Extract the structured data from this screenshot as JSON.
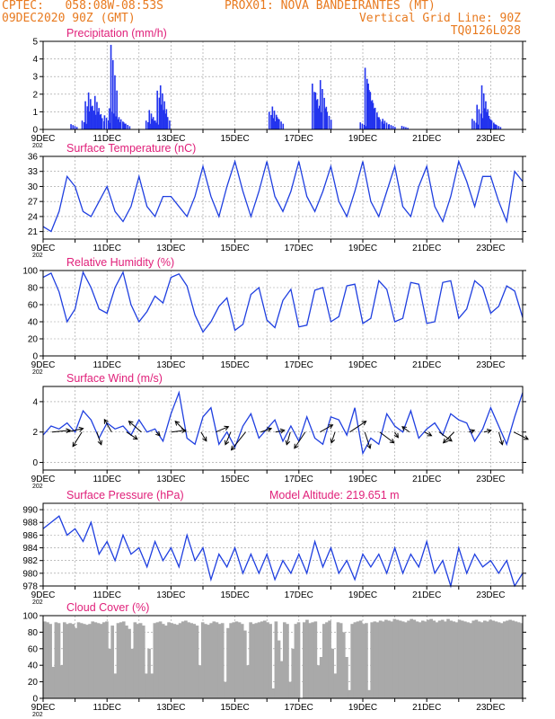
{
  "header": {
    "line1_left": "CPTEC:   058:08W-08:53S",
    "line1_right": "PROX01: NOVA BANDEIRANTES (MT)",
    "line2_left": "09DEC2020 90Z (GMT)",
    "line2_right": "Vertical Grid Line: 90Z",
    "line3_right": "TQ0126L028",
    "color": "#e87a1f"
  },
  "colors": {
    "series": "#1f3fe0",
    "bars": "#2233ee",
    "cloud": "#a9a9a9",
    "title": "#e0207a",
    "axis": "#000000"
  },
  "x_ticks": [
    "9DEC",
    "11DEC",
    "13DEC",
    "15DEC",
    "17DEC",
    "19DEC",
    "21DEC",
    "23DEC"
  ],
  "year_stub": "202",
  "chart_data": [
    {
      "type": "bar",
      "title": "Precipitation (mm/h)",
      "ylim": [
        0,
        5
      ],
      "yticks": [
        0,
        1,
        2,
        3,
        4,
        5
      ],
      "x_range_days": [
        9,
        24
      ],
      "events": [
        {
          "day": 9.85,
          "value": 0.3
        },
        {
          "day": 10.2,
          "value": 0.5
        },
        {
          "day": 10.3,
          "value": 1.6
        },
        {
          "day": 10.4,
          "value": 2.1
        },
        {
          "day": 10.5,
          "value": 1.3
        },
        {
          "day": 10.6,
          "value": 1.9
        },
        {
          "day": 10.7,
          "value": 1.0
        },
        {
          "day": 10.9,
          "value": 0.8
        },
        {
          "day": 11.05,
          "value": 1.2
        },
        {
          "day": 11.1,
          "value": 4.8
        },
        {
          "day": 11.2,
          "value": 0.9
        },
        {
          "day": 11.35,
          "value": 0.7
        },
        {
          "day": 11.5,
          "value": 0.4
        },
        {
          "day": 12.2,
          "value": 0.5
        },
        {
          "day": 12.3,
          "value": 1.1
        },
        {
          "day": 12.4,
          "value": 0.6
        },
        {
          "day": 12.55,
          "value": 2.2
        },
        {
          "day": 12.65,
          "value": 2.5
        },
        {
          "day": 12.75,
          "value": 1.1
        },
        {
          "day": 16.05,
          "value": 1.0
        },
        {
          "day": 16.15,
          "value": 1.3
        },
        {
          "day": 16.3,
          "value": 0.7
        },
        {
          "day": 17.4,
          "value": 2.6
        },
        {
          "day": 17.5,
          "value": 2.1
        },
        {
          "day": 17.65,
          "value": 2.8
        },
        {
          "day": 17.8,
          "value": 1.2
        },
        {
          "day": 18.9,
          "value": 0.4
        },
        {
          "day": 19.05,
          "value": 3.5
        },
        {
          "day": 19.15,
          "value": 2.6
        },
        {
          "day": 19.3,
          "value": 1.5
        },
        {
          "day": 19.45,
          "value": 0.7
        },
        {
          "day": 19.6,
          "value": 0.6
        },
        {
          "day": 19.8,
          "value": 0.3
        },
        {
          "day": 20.2,
          "value": 0.2
        },
        {
          "day": 22.4,
          "value": 0.6
        },
        {
          "day": 22.55,
          "value": 1.4
        },
        {
          "day": 22.7,
          "value": 2.5
        },
        {
          "day": 22.8,
          "value": 1.2
        },
        {
          "day": 22.95,
          "value": 0.6
        },
        {
          "day": 23.1,
          "value": 0.3
        }
      ]
    },
    {
      "type": "line",
      "title": "Surface Temperature (nC)",
      "ylim": [
        19.5,
        36
      ],
      "yticks": [
        21,
        24,
        27,
        30,
        33,
        36
      ],
      "x": [
        9,
        9.25,
        9.5,
        9.75,
        10,
        10.25,
        10.5,
        10.75,
        11,
        11.25,
        11.5,
        11.75,
        12,
        12.25,
        12.5,
        12.75,
        13,
        13.25,
        13.5,
        13.75,
        14,
        14.25,
        14.5,
        14.75,
        15,
        15.25,
        15.5,
        15.75,
        16,
        16.25,
        16.5,
        16.75,
        17,
        17.25,
        17.5,
        17.75,
        18,
        18.25,
        18.5,
        18.75,
        19,
        19.25,
        19.5,
        19.75,
        20,
        20.25,
        20.5,
        20.75,
        21,
        21.25,
        21.5,
        21.75,
        22,
        22.25,
        22.5,
        22.75,
        23,
        23.25,
        23.5,
        23.75,
        24
      ],
      "values": [
        22,
        21,
        25,
        32,
        30,
        25,
        24,
        27,
        30,
        25,
        23,
        26,
        32,
        26,
        24,
        28,
        28,
        26,
        24,
        28,
        34,
        28,
        24,
        30,
        35,
        29,
        24,
        29,
        35,
        28,
        25,
        29,
        35,
        28,
        25,
        29,
        34,
        27,
        24,
        29,
        35,
        27,
        24,
        29,
        34,
        26,
        24,
        30,
        34,
        26,
        23,
        28,
        35,
        31,
        26,
        32,
        32,
        27,
        23,
        33,
        31
      ]
    },
    {
      "type": "line",
      "title": "Relative Humidity (%)",
      "ylim": [
        0,
        100
      ],
      "yticks": [
        0,
        20,
        40,
        60,
        80,
        100
      ],
      "x": [
        9,
        9.25,
        9.5,
        9.75,
        10,
        10.25,
        10.5,
        10.75,
        11,
        11.25,
        11.5,
        11.75,
        12,
        12.25,
        12.5,
        12.75,
        13,
        13.25,
        13.5,
        13.75,
        14,
        14.25,
        14.5,
        14.75,
        15,
        15.25,
        15.5,
        15.75,
        16,
        16.25,
        16.5,
        16.75,
        17,
        17.25,
        17.5,
        17.75,
        18,
        18.25,
        18.5,
        18.75,
        19,
        19.25,
        19.5,
        19.75,
        20,
        20.25,
        20.5,
        20.75,
        21,
        21.25,
        21.5,
        21.75,
        22,
        22.25,
        22.5,
        22.75,
        23,
        23.25,
        23.5,
        23.75,
        24
      ],
      "values": [
        92,
        97,
        75,
        40,
        55,
        98,
        80,
        55,
        50,
        80,
        98,
        60,
        40,
        52,
        70,
        62,
        92,
        96,
        82,
        48,
        28,
        40,
        58,
        68,
        30,
        37,
        72,
        80,
        42,
        33,
        65,
        78,
        34,
        36,
        77,
        80,
        40,
        46,
        82,
        84,
        38,
        44,
        88,
        78,
        40,
        44,
        86,
        84,
        38,
        40,
        86,
        88,
        44,
        55,
        88,
        80,
        50,
        58,
        82,
        76,
        45
      ]
    },
    {
      "type": "line",
      "title": "Surface Wind (m/s)",
      "ylim": [
        -0.5,
        5
      ],
      "yticks": [
        0,
        2,
        4
      ],
      "x": [
        9,
        9.25,
        9.5,
        9.75,
        10,
        10.25,
        10.5,
        10.75,
        11,
        11.25,
        11.5,
        11.75,
        12,
        12.25,
        12.5,
        12.75,
        13,
        13.25,
        13.5,
        13.75,
        14,
        14.25,
        14.5,
        14.75,
        15,
        15.25,
        15.5,
        15.75,
        16,
        16.25,
        16.5,
        16.75,
        17,
        17.25,
        17.5,
        17.75,
        18,
        18.25,
        18.5,
        18.75,
        19,
        19.25,
        19.5,
        19.75,
        20,
        20.25,
        20.5,
        20.75,
        21,
        21.25,
        21.5,
        21.75,
        22,
        22.25,
        22.5,
        22.75,
        23,
        23.25,
        23.5,
        23.75,
        24
      ],
      "values": [
        1.8,
        2.4,
        2.2,
        2.6,
        2.0,
        3.4,
        2.8,
        1.6,
        2.6,
        2.2,
        2.4,
        1.8,
        2.8,
        2.0,
        2.2,
        1.4,
        3.2,
        4.6,
        1.6,
        1.2,
        3.0,
        3.6,
        1.2,
        2.0,
        1.0,
        2.4,
        3.2,
        1.6,
        2.2,
        2.8,
        1.4,
        2.4,
        1.4,
        3.0,
        1.6,
        1.2,
        3.0,
        2.8,
        1.8,
        3.6,
        0.6,
        1.6,
        1.2,
        3.2,
        2.4,
        2.0,
        3.4,
        1.6,
        2.2,
        2.6,
        1.8,
        3.2,
        2.8,
        2.6,
        1.4,
        2.2,
        3.6,
        2.4,
        1.2,
        3.0,
        4.6
      ],
      "arrows_u": [
        2,
        1.8,
        -1,
        0.5,
        -0.8,
        1.2,
        -1.4,
        0.4,
        1.6,
        -1.2,
        0.6,
        1.4,
        -0.6,
        -1.6,
        1.2,
        1.0,
        -0.4,
        -1.2,
        1.4,
        -0.4,
        1.8,
        0.6,
        1.6,
        0.4,
        -0.8,
        0.8,
        1.4,
        -1.2,
        0.6,
        0.8,
        0.4,
        1.6
      ],
      "arrows_v": [
        0.2,
        0.4,
        -1.6,
        -1.4,
        1.4,
        -0.8,
        1.2,
        -0.4,
        0.2,
        1.2,
        -1.0,
        0.6,
        -1.4,
        -2.0,
        0.4,
        0.2,
        -1.4,
        -1.8,
        0.8,
        -1.2,
        1.2,
        -1.8,
        -1.2,
        -0.6,
        0.6,
        -0.4,
        -1.0,
        -1.2,
        0.2,
        0.2,
        -1.4,
        -0.8
      ]
    },
    {
      "type": "line",
      "title": "Surface Pressure (hPa)",
      "annotation": "Model Altitude: 219.651 m",
      "ylim": [
        978,
        991
      ],
      "yticks": [
        978,
        980,
        982,
        984,
        986,
        988,
        990
      ],
      "x": [
        9,
        9.25,
        9.5,
        9.75,
        10,
        10.25,
        10.5,
        10.75,
        11,
        11.25,
        11.5,
        11.75,
        12,
        12.25,
        12.5,
        12.75,
        13,
        13.25,
        13.5,
        13.75,
        14,
        14.25,
        14.5,
        14.75,
        15,
        15.25,
        15.5,
        15.75,
        16,
        16.25,
        16.5,
        16.75,
        17,
        17.25,
        17.5,
        17.75,
        18,
        18.25,
        18.5,
        18.75,
        19,
        19.25,
        19.5,
        19.75,
        20,
        20.25,
        20.5,
        20.75,
        21,
        21.25,
        21.5,
        21.75,
        22,
        22.25,
        22.5,
        22.75,
        23,
        23.25,
        23.5,
        23.75,
        24
      ],
      "values": [
        987,
        988,
        989,
        986,
        987,
        985,
        988,
        983,
        985,
        982,
        986,
        983,
        984,
        981,
        985,
        982,
        984,
        981,
        986,
        982,
        984,
        979,
        983,
        981,
        984,
        980,
        983,
        980,
        983,
        979,
        982,
        980,
        983,
        980,
        985,
        981,
        984,
        980,
        982,
        979,
        983,
        981,
        983,
        980,
        984,
        980,
        983,
        981,
        985,
        980,
        982,
        978,
        984,
        980,
        983,
        981,
        982,
        980,
        982,
        978,
        980
      ]
    },
    {
      "type": "bar",
      "title": "Cloud Cover (%)",
      "ylim": [
        0,
        100
      ],
      "yticks": [
        0,
        20,
        40,
        60,
        80,
        100
      ],
      "x_range_days": [
        9,
        24
      ],
      "values": [
        93,
        92,
        90,
        38,
        92,
        91,
        40,
        92,
        90,
        91,
        90,
        85,
        92,
        91,
        90,
        89,
        90,
        93,
        92,
        91,
        90,
        92,
        93,
        60,
        88,
        30,
        91,
        92,
        93,
        88,
        84,
        60,
        92,
        90,
        91,
        88,
        30,
        60,
        30,
        91,
        92,
        93,
        90,
        88,
        92,
        91,
        90,
        89,
        91,
        93,
        94,
        92,
        91,
        90,
        88,
        40,
        92,
        90,
        89,
        91,
        93,
        92,
        90,
        91,
        20,
        85,
        91,
        92,
        93,
        92,
        90,
        82,
        40,
        92,
        90,
        91,
        92,
        93,
        94,
        92,
        90,
        12,
        93,
        70,
        45,
        92,
        90,
        20,
        60,
        90,
        92,
        0,
        92,
        95,
        91,
        92,
        93,
        40,
        50,
        90,
        92,
        94,
        60,
        30,
        92,
        91,
        80,
        50,
        10,
        90,
        92,
        93,
        94,
        90,
        91,
        10,
        92,
        93,
        92,
        94,
        93,
        95,
        94,
        93,
        96,
        95,
        94,
        93,
        92,
        94,
        96,
        95,
        93,
        92,
        94,
        93,
        95,
        96,
        94,
        92,
        94,
        95,
        93,
        96,
        94,
        93,
        92,
        95,
        94,
        93,
        92,
        91,
        94,
        95,
        93,
        92,
        94,
        93,
        95,
        94,
        93,
        92,
        91,
        93,
        94,
        95,
        94,
        93,
        92,
        91
      ]
    }
  ]
}
